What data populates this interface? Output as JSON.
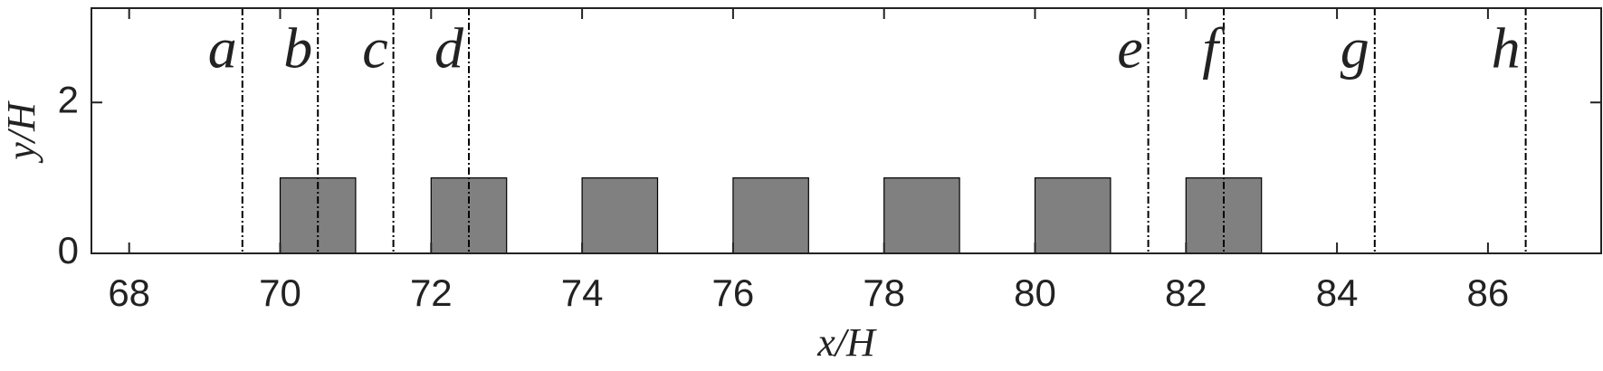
{
  "chart_data": {
    "type": "blocks",
    "x_label": "x/H",
    "y_label": "y/H",
    "xlim": [
      67.5,
      87.5
    ],
    "xticks": [
      68,
      70,
      72,
      74,
      76,
      78,
      80,
      82,
      84,
      86
    ],
    "ylim": [
      0,
      3.25
    ],
    "yticks": [
      0,
      2
    ],
    "blocks": {
      "left": [
        70,
        72,
        74,
        76,
        78,
        80,
        82
      ],
      "right": [
        71,
        73,
        75,
        77,
        79,
        81,
        83
      ],
      "height": [
        1,
        1,
        1,
        1,
        1,
        1,
        1
      ],
      "color": "#808080"
    },
    "lines": {
      "x": [
        69.5,
        70.5,
        71.5,
        72.5,
        81.5,
        82.5,
        84.5,
        86.5
      ],
      "labels": [
        "a",
        "b",
        "c",
        "d",
        "e",
        "f",
        "g",
        "h"
      ]
    }
  }
}
